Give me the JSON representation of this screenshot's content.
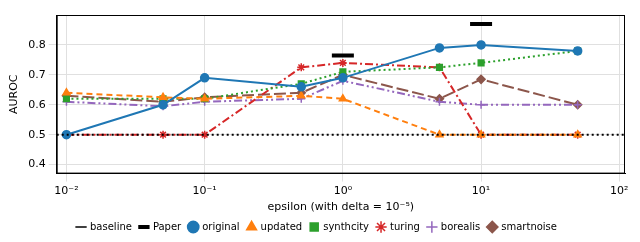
{
  "chart_data": {
    "type": "line",
    "x_label": "epsilon (with delta = 10⁻⁵)",
    "y_label": "AUROC",
    "log": "x",
    "grid": true,
    "legend": "bottom",
    "xlim": [
      0.0085,
      110
    ],
    "xticks": [
      {
        "value": 0.01,
        "label": "10⁻²"
      },
      {
        "value": 0.1,
        "label": "10⁻¹"
      },
      {
        "value": 1,
        "label": "10⁰"
      },
      {
        "value": 10,
        "label": "10¹"
      },
      {
        "value": 100,
        "label": "10²"
      }
    ],
    "ylim": [
      0.37,
      0.9
    ],
    "yticks": [
      0.4,
      0.5,
      0.6,
      0.7,
      0.8
    ],
    "series": [
      {
        "name": "baseline",
        "color": "#000000",
        "line_style": "dotted",
        "marker": "none",
        "x": [
          0.0085,
          110
        ],
        "values": [
          0.5,
          0.5
        ]
      },
      {
        "name": "Paper",
        "color": "#000000",
        "type": "scatter",
        "marker": "hline",
        "x": [
          1,
          10
        ],
        "values": [
          0.765,
          0.87
        ]
      },
      {
        "name": "original",
        "color": "#1f77b4",
        "line_style": "solid",
        "marker": "circle",
        "x": [
          0.01,
          0.05,
          0.1,
          0.5,
          1,
          5,
          10,
          50
        ],
        "values": [
          0.5,
          0.6,
          0.69,
          0.66,
          0.69,
          0.79,
          0.8,
          0.78
        ]
      },
      {
        "name": "updated",
        "color": "#ff7f0e",
        "line_style": "dashed",
        "marker": "triangle",
        "x": [
          0.01,
          0.05,
          0.1,
          0.5,
          1,
          5,
          10,
          50
        ],
        "values": [
          0.64,
          0.625,
          0.62,
          0.63,
          0.62,
          0.5,
          0.5,
          0.5
        ]
      },
      {
        "name": "synthcity",
        "color": "#2ca02c",
        "line_style": "dotted",
        "marker": "square",
        "x": [
          0.01,
          0.05,
          0.1,
          0.5,
          1,
          5,
          10,
          50
        ],
        "values": [
          0.62,
          0.62,
          0.62,
          0.67,
          0.71,
          0.725,
          0.74,
          0.78
        ]
      },
      {
        "name": "turing",
        "color": "#d62728",
        "line_style": "dashdot",
        "marker": "star",
        "x": [
          0.01,
          0.05,
          0.1,
          0.5,
          1,
          5,
          10,
          50
        ],
        "values": [
          0.5,
          0.5,
          0.5,
          0.725,
          0.74,
          0.725,
          0.5,
          0.5
        ]
      },
      {
        "name": "borealis",
        "color": "#9467bd",
        "line_style": "dashdotdot",
        "marker": "plus",
        "x": [
          0.01,
          0.05,
          0.1,
          0.5,
          1,
          5,
          10,
          50
        ],
        "values": [
          0.61,
          0.595,
          0.61,
          0.62,
          0.68,
          0.61,
          0.6,
          0.6
        ]
      },
      {
        "name": "smartnoise",
        "color": "#8c564b",
        "line_style": "longdash",
        "marker": "diamond",
        "x": [
          0.01,
          0.05,
          0.1,
          0.5,
          1,
          5,
          10,
          50
        ],
        "values": [
          0.63,
          0.61,
          0.625,
          0.64,
          0.7,
          0.62,
          0.685,
          0.6
        ]
      }
    ]
  }
}
